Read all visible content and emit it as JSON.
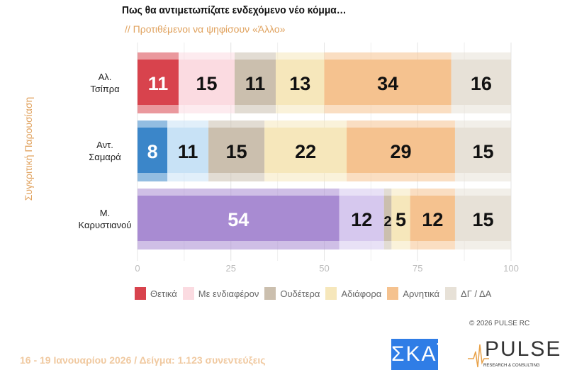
{
  "chart_data": {
    "type": "bar",
    "orientation": "horizontal",
    "stacked": true,
    "title": "Πως θα αντιμετωπίζατε ενδεχόμενο νέο κόμμα…",
    "subtitle": "// Προτιθέμενοι να ψηφίσουν «Άλλο»",
    "ylabel": "Συγκριτική  Παρουσίαση",
    "xlim": [
      0,
      100
    ],
    "xticks": [
      "0",
      "25",
      "50",
      "75",
      "100"
    ],
    "categories": [
      [
        "Αλ.",
        "Τσίπρα"
      ],
      [
        "Αντ.",
        "Σαμαρά"
      ],
      [
        "Μ.",
        "Καρυστιανού"
      ]
    ],
    "series": [
      {
        "name": "Θετικά",
        "values": [
          11,
          8,
          54
        ],
        "colors": [
          "#d8434d",
          "#3b86c9",
          "#a88bd2"
        ]
      },
      {
        "name": "Με ενδιαφέρον",
        "values": [
          15,
          11,
          12
        ],
        "colors": [
          "#fbdbe1",
          "#c8e2f6",
          "#d6c8ee"
        ]
      },
      {
        "name": "Ουδέτερα",
        "values": [
          11,
          15,
          2
        ],
        "colors": [
          "#cbbfae",
          "#cbbfae",
          "#cbbfae"
        ]
      },
      {
        "name": "Αδιάφορα",
        "values": [
          13,
          22,
          5
        ],
        "colors": [
          "#f6e7bb",
          "#f6e7bb",
          "#f6e7bb"
        ]
      },
      {
        "name": "Αρνητικά",
        "values": [
          34,
          29,
          12
        ],
        "colors": [
          "#f5c28f",
          "#f5c28f",
          "#f5c28f"
        ]
      },
      {
        "name": "ΔΓ / ΔΑ",
        "values": [
          16,
          15,
          15
        ],
        "colors": [
          "#e7e1d7",
          "#e7e1d7",
          "#e7e1d7"
        ]
      }
    ],
    "legend_position": "bottom",
    "legend_colors": [
      "#d8434d",
      "#fbdbe1",
      "#cbbfae",
      "#f6e7bb",
      "#f5c28f",
      "#e7e1d7"
    ]
  },
  "copyright": "©  2026  PULSE RC",
  "footer": "16 - 19 Ιανουαρίου 2026  /  Δείγμα:  1.123 συνεντεύξεις",
  "logos": {
    "skai": "ΣΚΑΪ",
    "pulse": "PULSE",
    "pulse_sub": "RESEARCH & CONSULTING"
  }
}
